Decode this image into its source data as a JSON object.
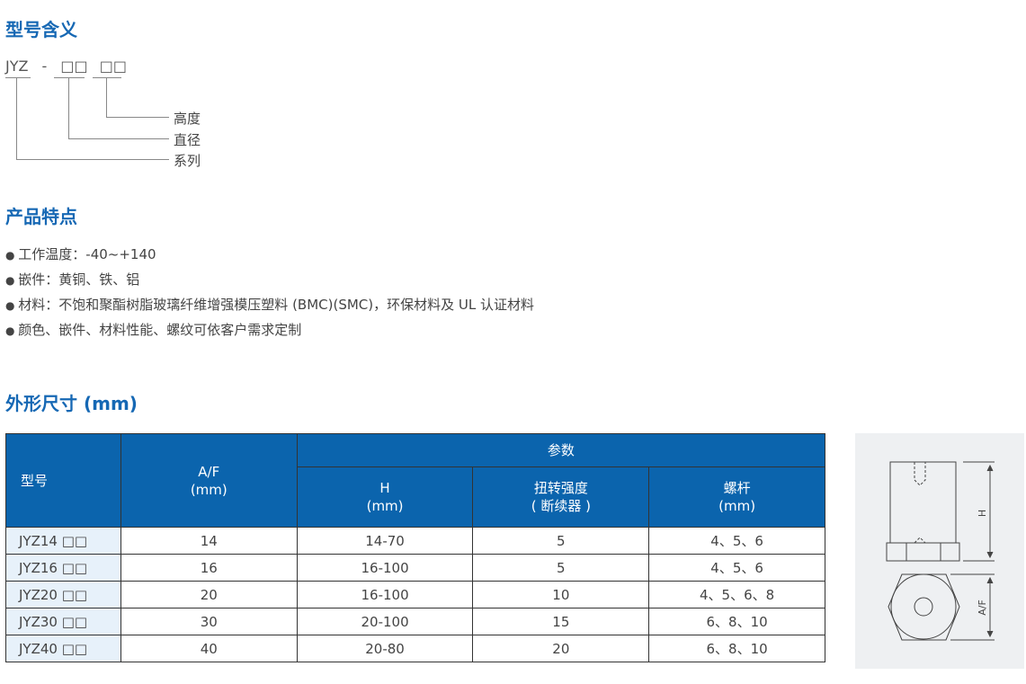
{
  "section1": {
    "title": "型号含义",
    "code_prefix": "JYZ",
    "code_dash": "-",
    "code_box1": "□□",
    "code_box2": "□□",
    "labels": [
      "高度",
      "直径",
      "系列"
    ]
  },
  "section2": {
    "title": "产品特点",
    "features": [
      "工作温度：-40~+140",
      "嵌件：黄铜、铁、铝",
      "材料：不饱和聚酯树脂玻璃纤维增强模压塑料 (BMC)(SMC)，环保材料及 UL 认证材料",
      "颜色、嵌件、材料性能、螺纹可依客户需求定制"
    ]
  },
  "section3": {
    "title": "外形尺寸 (mm)",
    "table": {
      "model": "型号",
      "af": "A/F",
      "af_unit": "(mm)",
      "params": "参数",
      "h": "H",
      "h_unit": "(mm)",
      "torque": "扭转强度",
      "torque_unit": "( 断续器 )",
      "screw": "螺杆",
      "screw_unit": "(mm)",
      "rows": [
        [
          "JYZ14 □□",
          "14",
          "14-70",
          "5",
          "4、5、6"
        ],
        [
          "JYZ16 □□",
          "16",
          "16-100",
          "5",
          "4、5、6"
        ],
        [
          "JYZ20 □□",
          "20",
          "16-100",
          "10",
          "4、5、6、8"
        ],
        [
          "JYZ30 □□",
          "30",
          "20-100",
          "15",
          "6、8、10"
        ],
        [
          "JYZ40 □□",
          "40",
          "20-80",
          "20",
          "6、8、10"
        ]
      ]
    },
    "figure": {
      "h_label": "H",
      "af_label": "A/F"
    }
  },
  "colors": {
    "title": "#1668b4",
    "header": "#0b64ad",
    "model_cell": "#e7f1fa"
  }
}
